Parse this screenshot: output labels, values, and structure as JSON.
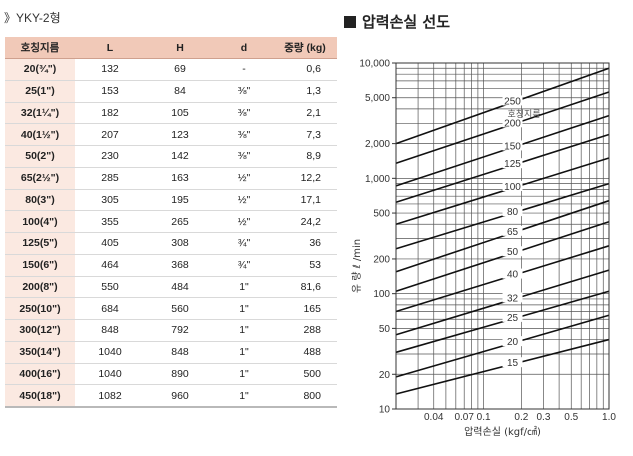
{
  "model_title": "》YKY-2형",
  "table": {
    "headers": [
      "호칭지름",
      "L",
      "H",
      "d",
      "중량 (kg)"
    ],
    "rows": [
      [
        "20(¾\")",
        "132",
        "69",
        "-",
        "0,6"
      ],
      [
        "25(1\")",
        "153",
        "84",
        "⅜\"",
        "1,3"
      ],
      [
        "32(1¼\")",
        "182",
        "105",
        "⅜\"",
        "2,1"
      ],
      [
        "40(1½\")",
        "207",
        "123",
        "⅜\"",
        "7,3"
      ],
      [
        "50(2\")",
        "230",
        "142",
        "⅜\"",
        "8,9"
      ],
      [
        "65(2½\")",
        "285",
        "163",
        "½\"",
        "12,2"
      ],
      [
        "80(3\")",
        "305",
        "195",
        "½\"",
        "17,1"
      ],
      [
        "100(4\")",
        "355",
        "265",
        "½\"",
        "24,2"
      ],
      [
        "125(5\")",
        "405",
        "308",
        "¾\"",
        "36"
      ],
      [
        "150(6\")",
        "464",
        "368",
        "¾\"",
        "53"
      ],
      [
        "200(8\")",
        "550",
        "484",
        "1\"",
        "81,6"
      ],
      [
        "250(10\")",
        "684",
        "560",
        "1\"",
        "165"
      ],
      [
        "300(12\")",
        "848",
        "792",
        "1\"",
        "288"
      ],
      [
        "350(14\")",
        "1040",
        "848",
        "1\"",
        "488"
      ],
      [
        "400(16\")",
        "1040",
        "890",
        "1\"",
        "500"
      ],
      [
        "450(18\")",
        "1082",
        "960",
        "1\"",
        "800"
      ]
    ]
  },
  "chart_data": {
    "type": "line",
    "title": "압력손실 선도",
    "xlabel": "압력손실 (kgf/㎠)",
    "ylabel": "유 량 ℓ /min",
    "x_scale": "log",
    "y_scale": "log",
    "xlim": [
      0.02,
      1.0
    ],
    "ylim": [
      10,
      10000
    ],
    "x_tick_labels": [
      {
        "value": 0.04,
        "label": "0.04"
      },
      {
        "value": 0.07,
        "label": "0.07"
      },
      {
        "value": 0.1,
        "label": "0.1"
      },
      {
        "value": 0.2,
        "label": "0.2"
      },
      {
        "value": 0.3,
        "label": "0.3"
      },
      {
        "value": 0.5,
        "label": "0.5"
      },
      {
        "value": 1.0,
        "label": "1.0"
      }
    ],
    "y_tick_labels": [
      {
        "value": 10,
        "label": "10"
      },
      {
        "value": 20,
        "label": "20"
      },
      {
        "value": 50,
        "label": "50"
      },
      {
        "value": 100,
        "label": "100"
      },
      {
        "value": 200,
        "label": "200"
      },
      {
        "value": 500,
        "label": "500"
      },
      {
        "value": 1000,
        "label": "1,000"
      },
      {
        "value": 2000,
        "label": "2,000"
      },
      {
        "value": 5000,
        "label": "5,000"
      },
      {
        "value": 10000,
        "label": "10,000"
      }
    ],
    "grid": true,
    "legend_title": "호칭지름",
    "series": [
      {
        "name": "15",
        "points": [
          [
            0.02,
            13.5
          ],
          [
            1.0,
            40
          ]
        ]
      },
      {
        "name": "20",
        "points": [
          [
            0.02,
            19
          ],
          [
            1.0,
            65
          ]
        ]
      },
      {
        "name": "25",
        "points": [
          [
            0.02,
            31
          ],
          [
            1.0,
            105
          ]
        ]
      },
      {
        "name": "32",
        "points": [
          [
            0.02,
            44
          ],
          [
            1.0,
            160
          ]
        ]
      },
      {
        "name": "40",
        "points": [
          [
            0.02,
            70
          ],
          [
            1.0,
            260
          ]
        ]
      },
      {
        "name": "50",
        "points": [
          [
            0.02,
            105
          ],
          [
            1.0,
            420
          ]
        ]
      },
      {
        "name": "65",
        "points": [
          [
            0.02,
            155
          ],
          [
            1.0,
            640
          ]
        ]
      },
      {
        "name": "80",
        "points": [
          [
            0.02,
            245
          ],
          [
            1.0,
            900
          ]
        ]
      },
      {
        "name": "100",
        "points": [
          [
            0.02,
            400
          ],
          [
            1.0,
            1500
          ]
        ]
      },
      {
        "name": "125",
        "points": [
          [
            0.02,
            620
          ],
          [
            1.0,
            2400
          ]
        ]
      },
      {
        "name": "150",
        "points": [
          [
            0.02,
            860
          ],
          [
            1.0,
            3500
          ]
        ]
      },
      {
        "name": "200",
        "points": [
          [
            0.02,
            1350
          ],
          [
            1.0,
            5600
          ]
        ]
      },
      {
        "name": "250",
        "points": [
          [
            0.02,
            2000
          ],
          [
            1.0,
            9000
          ]
        ]
      }
    ]
  }
}
